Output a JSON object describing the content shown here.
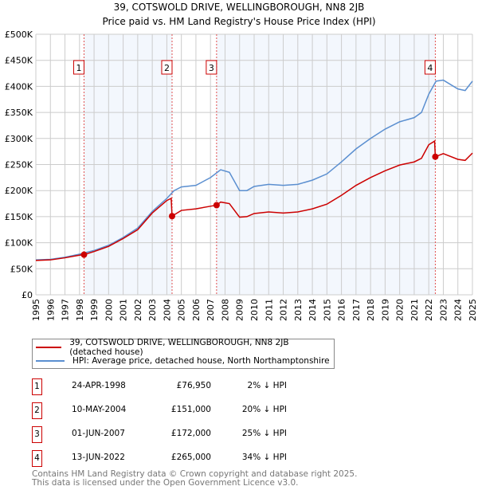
{
  "chart_data": {
    "type": "line",
    "title": "39, COTSWOLD DRIVE, WELLINGBOROUGH, NN8 2JB",
    "subtitle": "Price paid vs. HM Land Registry's House Price Index (HPI)",
    "xlim": [
      1995,
      2025
    ],
    "ylim": [
      0,
      500000
    ],
    "yticks": [
      0,
      50000,
      100000,
      150000,
      200000,
      250000,
      300000,
      350000,
      400000,
      450000,
      500000
    ],
    "ytick_labels": [
      "£0",
      "£50K",
      "£100K",
      "£150K",
      "£200K",
      "£250K",
      "£300K",
      "£350K",
      "£400K",
      "£450K",
      "£500K"
    ],
    "xticks": [
      1995,
      1996,
      1997,
      1998,
      1999,
      2000,
      2001,
      2002,
      2003,
      2004,
      2005,
      2006,
      2007,
      2008,
      2009,
      2010,
      2011,
      2012,
      2013,
      2014,
      2015,
      2016,
      2017,
      2018,
      2019,
      2020,
      2021,
      2022,
      2023,
      2024,
      2025
    ],
    "grid": true,
    "shaded_periods": [
      [
        1998.31,
        2004.36
      ],
      [
        2007.42,
        2022.45
      ]
    ],
    "series": [
      {
        "name": "39, COTSWOLD DRIVE, WELLINGBOROUGH, NN8 2JB (detached house)",
        "color": "#cc0000",
        "x": [
          1995,
          1996,
          1997,
          1998,
          1998.31,
          1999,
          2000,
          2001,
          2002,
          2003,
          2004,
          2004.3,
          2004.36,
          2005,
          2006,
          2007,
          2007.42,
          2007.7,
          2008.3,
          2009,
          2009.5,
          2010,
          2011,
          2012,
          2013,
          2014,
          2015,
          2016,
          2017,
          2018,
          2019,
          2020,
          2021,
          2021.5,
          2022,
          2022.4,
          2022.45,
          2023,
          2024,
          2024.5,
          2025
        ],
        "y": [
          66000,
          67000,
          71000,
          76000,
          76950,
          83000,
          93000,
          108000,
          125000,
          157000,
          181000,
          185000,
          151000,
          162000,
          165000,
          170000,
          172000,
          178000,
          175000,
          149000,
          150000,
          156000,
          159000,
          157000,
          159000,
          165000,
          174000,
          191000,
          210000,
          225000,
          238000,
          249000,
          255000,
          262000,
          288000,
          295000,
          265000,
          271000,
          260000,
          258000,
          272000
        ]
      },
      {
        "name": "HPI: Average price, detached house, North Northamptonshire",
        "color": "#5b8fd0",
        "x": [
          1995,
          1996,
          1997,
          1998,
          1999,
          2000,
          2001,
          2002,
          2003,
          2004,
          2004.5,
          2005,
          2006,
          2007,
          2007.7,
          2008.3,
          2009,
          2009.5,
          2010,
          2011,
          2012,
          2013,
          2014,
          2015,
          2016,
          2017,
          2018,
          2019,
          2020,
          2021,
          2021.5,
          2022,
          2022.5,
          2023,
          2024,
          2024.5,
          2025
        ],
        "y": [
          67000,
          68000,
          72000,
          78000,
          85000,
          95000,
          110000,
          128000,
          160000,
          185000,
          200000,
          207000,
          210000,
          225000,
          240000,
          235000,
          200000,
          200000,
          208000,
          212000,
          210000,
          212000,
          220000,
          232000,
          255000,
          280000,
          300000,
          318000,
          332000,
          340000,
          350000,
          385000,
          410000,
          412000,
          395000,
          392000,
          410000
        ]
      }
    ],
    "sales": [
      {
        "n": "1",
        "x": 1998.31,
        "y": 76950,
        "date": "24-APR-1998",
        "price": "£76,950",
        "delta": "2% ↓ HPI"
      },
      {
        "n": "2",
        "x": 2004.36,
        "y": 151000,
        "date": "10-MAY-2004",
        "price": "£151,000",
        "delta": "20% ↓ HPI"
      },
      {
        "n": "3",
        "x": 2007.42,
        "y": 172000,
        "date": "01-JUN-2007",
        "price": "£172,000",
        "delta": "25% ↓ HPI"
      },
      {
        "n": "4",
        "x": 2022.45,
        "y": 265000,
        "date": "13-JUN-2022",
        "price": "£265,000",
        "delta": "34% ↓ HPI"
      }
    ]
  },
  "legend": {
    "property": "39, COTSWOLD DRIVE, WELLINGBOROUGH, NN8 2JB (detached house)",
    "hpi": "HPI: Average price, detached house, North Northamptonshire"
  },
  "footer": {
    "line1": "Contains HM Land Registry data © Crown copyright and database right 2025.",
    "line2": "This data is licensed under the Open Government Licence v3.0."
  }
}
